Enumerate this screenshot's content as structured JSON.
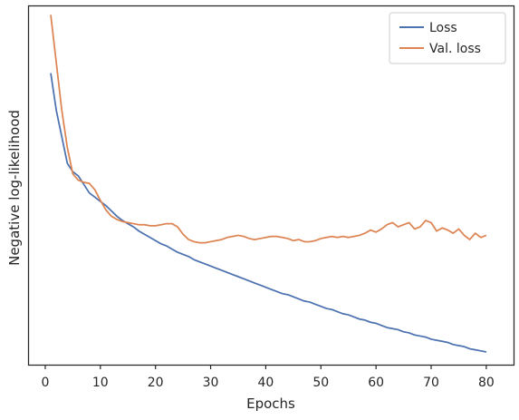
{
  "chart_data": {
    "type": "line",
    "xlabel": "Epochs",
    "ylabel": "Negative log-likelihood",
    "xlim": [
      -2.95,
      84.95
    ],
    "ylim": [
      -0.1,
      3.28
    ],
    "xticks": [
      0,
      10,
      20,
      30,
      40,
      50,
      60,
      70,
      80
    ],
    "xtick_labels": [
      "0",
      "10",
      "20",
      "30",
      "40",
      "50",
      "60",
      "70",
      "80"
    ],
    "yticks_shown": false,
    "legend_position": "upper right",
    "series": [
      {
        "name": "Loss",
        "color": "#4c72b0",
        "x": [
          1,
          2,
          3,
          4,
          5,
          6,
          7,
          8,
          9,
          10,
          11,
          12,
          13,
          14,
          15,
          16,
          17,
          18,
          19,
          20,
          21,
          22,
          23,
          24,
          25,
          26,
          27,
          28,
          29,
          30,
          31,
          32,
          33,
          34,
          35,
          36,
          37,
          38,
          39,
          40,
          41,
          42,
          43,
          44,
          45,
          46,
          47,
          48,
          49,
          50,
          51,
          52,
          53,
          54,
          55,
          56,
          57,
          58,
          59,
          60,
          61,
          62,
          63,
          64,
          65,
          66,
          67,
          68,
          69,
          70,
          71,
          72,
          73,
          74,
          75,
          76,
          77,
          78,
          79,
          80
        ],
        "y": [
          2.65,
          2.3,
          2.05,
          1.8,
          1.72,
          1.68,
          1.6,
          1.52,
          1.48,
          1.44,
          1.4,
          1.35,
          1.3,
          1.26,
          1.23,
          1.2,
          1.16,
          1.13,
          1.1,
          1.07,
          1.04,
          1.02,
          0.99,
          0.96,
          0.94,
          0.92,
          0.89,
          0.87,
          0.85,
          0.83,
          0.81,
          0.79,
          0.77,
          0.75,
          0.73,
          0.71,
          0.69,
          0.67,
          0.65,
          0.63,
          0.61,
          0.59,
          0.57,
          0.56,
          0.54,
          0.52,
          0.5,
          0.49,
          0.47,
          0.45,
          0.43,
          0.42,
          0.4,
          0.38,
          0.37,
          0.35,
          0.33,
          0.32,
          0.3,
          0.29,
          0.27,
          0.25,
          0.24,
          0.23,
          0.21,
          0.2,
          0.18,
          0.17,
          0.16,
          0.14,
          0.13,
          0.12,
          0.11,
          0.09,
          0.08,
          0.07,
          0.05,
          0.04,
          0.03,
          0.02
        ]
      },
      {
        "name": "Val. loss",
        "color": "#dd8452",
        "x": [
          1,
          2,
          3,
          4,
          5,
          6,
          7,
          8,
          9,
          10,
          11,
          12,
          13,
          14,
          15,
          16,
          17,
          18,
          19,
          20,
          21,
          22,
          23,
          24,
          25,
          26,
          27,
          28,
          29,
          30,
          31,
          32,
          33,
          34,
          35,
          36,
          37,
          38,
          39,
          40,
          41,
          42,
          43,
          44,
          45,
          46,
          47,
          48,
          49,
          50,
          51,
          52,
          53,
          54,
          55,
          56,
          57,
          58,
          59,
          60,
          61,
          62,
          63,
          64,
          65,
          66,
          67,
          68,
          69,
          70,
          71,
          72,
          73,
          74,
          75,
          76,
          77,
          78,
          79,
          80
        ],
        "y": [
          3.2,
          2.75,
          2.3,
          1.95,
          1.7,
          1.64,
          1.62,
          1.61,
          1.55,
          1.45,
          1.36,
          1.3,
          1.27,
          1.25,
          1.24,
          1.23,
          1.22,
          1.22,
          1.21,
          1.21,
          1.22,
          1.23,
          1.23,
          1.2,
          1.13,
          1.08,
          1.06,
          1.05,
          1.05,
          1.06,
          1.07,
          1.08,
          1.1,
          1.11,
          1.12,
          1.11,
          1.09,
          1.08,
          1.09,
          1.1,
          1.11,
          1.11,
          1.1,
          1.09,
          1.07,
          1.08,
          1.06,
          1.06,
          1.07,
          1.09,
          1.1,
          1.11,
          1.1,
          1.11,
          1.1,
          1.11,
          1.12,
          1.14,
          1.17,
          1.15,
          1.18,
          1.22,
          1.24,
          1.2,
          1.22,
          1.24,
          1.18,
          1.2,
          1.26,
          1.24,
          1.16,
          1.19,
          1.17,
          1.14,
          1.18,
          1.12,
          1.08,
          1.14,
          1.1,
          1.12
        ]
      }
    ]
  }
}
